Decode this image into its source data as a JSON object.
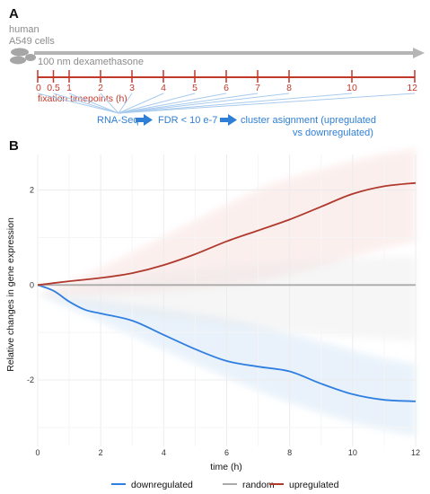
{
  "panel_a": {
    "letter": "A",
    "cell_line_1": "human",
    "cell_line_2": "A549 cells",
    "treatment": "100 nm dexamethasone",
    "timepoint_labels": [
      "0",
      "0.5",
      "1",
      "2",
      "3",
      "4",
      "5",
      "6",
      "7",
      "8",
      "10",
      "12"
    ],
    "timepoints_title": "fixation timepoints (h)",
    "pipeline": {
      "step1": "RNA-Seq",
      "step2": "FDR < 10 e-7",
      "step3_line1": "cluster asignment (upregulated",
      "step3_line2": "vs downregulated)"
    },
    "colors": {
      "timeline": "#c0392b",
      "arrow": "#b5b5b5",
      "pipeline": "#2f7fd6"
    }
  },
  "panel_b": {
    "letter": "B"
  },
  "chart_data": {
    "type": "line",
    "title": "",
    "xlabel": "time (h)",
    "ylabel": "Relative changes in gene expression",
    "xlim": [
      0,
      12
    ],
    "ylim": [
      -3.4,
      2.75
    ],
    "xticks": [
      "0",
      "2",
      "4",
      "6",
      "8",
      "10",
      "12"
    ],
    "yticks": [
      "-2",
      "0",
      "2"
    ],
    "grid": true,
    "legend_position": "bottom",
    "series": [
      {
        "name": "downregulated",
        "color": "#2f7fe0",
        "x": [
          0,
          0.5,
          1,
          1.5,
          2,
          3,
          4,
          5,
          6,
          7,
          8,
          9,
          10,
          11,
          12
        ],
        "y": [
          0,
          -0.12,
          -0.35,
          -0.52,
          -0.6,
          -0.75,
          -1.05,
          -1.35,
          -1.6,
          -1.72,
          -1.82,
          -2.08,
          -2.3,
          -2.42,
          -2.45
        ]
      },
      {
        "name": "random",
        "color": "#aaaaaa",
        "x": [
          0,
          12
        ],
        "y": [
          0,
          0
        ]
      },
      {
        "name": "upregulated",
        "color": "#b03a2e",
        "x": [
          0,
          0.5,
          1,
          2,
          3,
          4,
          5,
          6,
          7,
          8,
          9,
          10,
          11,
          12
        ],
        "y": [
          0,
          0.04,
          0.08,
          0.15,
          0.25,
          0.42,
          0.65,
          0.92,
          1.15,
          1.38,
          1.65,
          1.92,
          2.08,
          2.15
        ]
      }
    ]
  }
}
